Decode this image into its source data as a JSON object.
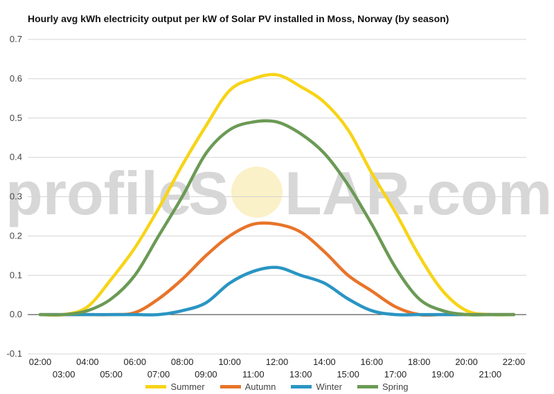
{
  "chart_data": {
    "type": "line",
    "title": "Hourly avg kWh electricity output per kW of Solar PV installed in Moss, Norway (by season)",
    "watermark": {
      "left": "profile",
      "sun_letter": "O",
      "right_prefix": "S",
      "right": "LAR.com"
    },
    "ylim": [
      -0.1,
      0.7
    ],
    "yticks": [
      "0.7",
      "0.6",
      "0.5",
      "0.4",
      "0.3",
      "0.2",
      "0.1",
      "0.0",
      "-0.1"
    ],
    "ytick_values": [
      0.7,
      0.6,
      0.5,
      0.4,
      0.3,
      0.2,
      0.1,
      0.0,
      -0.1
    ],
    "x": [
      "02:00",
      "03:00",
      "04:00",
      "05:00",
      "06:00",
      "07:00",
      "08:00",
      "09:00",
      "10:00",
      "11:00",
      "12:00",
      "13:00",
      "14:00",
      "15:00",
      "16:00",
      "17:00",
      "18:00",
      "19:00",
      "20:00",
      "21:00",
      "22:00"
    ],
    "series": [
      {
        "name": "Summer",
        "color": "#f7d417",
        "values": [
          0,
          0,
          0.02,
          0.09,
          0.17,
          0.27,
          0.38,
          0.48,
          0.57,
          0.6,
          0.61,
          0.58,
          0.54,
          0.47,
          0.36,
          0.26,
          0.15,
          0.06,
          0.01,
          0,
          0
        ]
      },
      {
        "name": "Autumn",
        "color": "#e8742a",
        "values": [
          0,
          0,
          0,
          0,
          0.005,
          0.04,
          0.09,
          0.15,
          0.2,
          0.23,
          0.23,
          0.21,
          0.16,
          0.1,
          0.06,
          0.02,
          0,
          0,
          0,
          0,
          0
        ]
      },
      {
        "name": "Winter",
        "color": "#2a95c3",
        "values": [
          0,
          0,
          0,
          0,
          0,
          0,
          0.01,
          0.03,
          0.08,
          0.11,
          0.12,
          0.1,
          0.08,
          0.04,
          0.01,
          0,
          0,
          0,
          0,
          0,
          0
        ]
      },
      {
        "name": "Spring",
        "color": "#6b9a55",
        "values": [
          0,
          0,
          0.01,
          0.04,
          0.1,
          0.2,
          0.3,
          0.41,
          0.47,
          0.49,
          0.49,
          0.46,
          0.41,
          0.33,
          0.23,
          0.12,
          0.04,
          0.01,
          0,
          0,
          0
        ]
      }
    ],
    "grid": true,
    "legend": "bottom"
  }
}
